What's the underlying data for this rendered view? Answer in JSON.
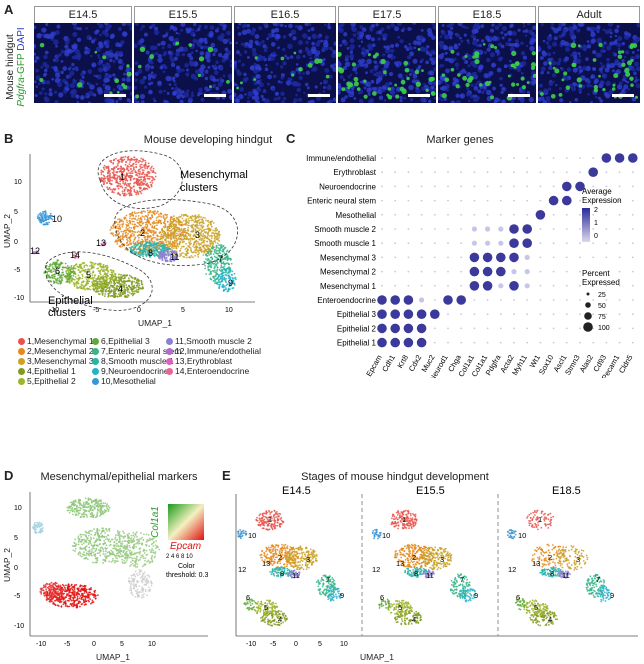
{
  "panels": {
    "A": "A",
    "B": "B",
    "C": "C",
    "D": "D",
    "E": "E"
  },
  "panelA": {
    "ylabel_top": "Mouse hindgut",
    "ylabel_mid": "Pdgfra",
    "ylabel_suffix": "-GFP",
    "ylabel_dapi": "DAPI",
    "stages": [
      "E14.5",
      "E15.5",
      "E16.5",
      "E17.5",
      "E18.5",
      "Adult"
    ]
  },
  "panelB": {
    "title": "Mouse developing hindgut",
    "mesenchymal": "Mesenchymal",
    "mesenchymal2": "clusters",
    "epithelial": "Epithelial",
    "epithelial2": "clusters",
    "xlabel": "UMAP_1",
    "ylabel": "UMAP_2",
    "xticks": [
      "-10",
      "-5",
      "0",
      "5",
      "10"
    ],
    "yticks": [
      "10",
      "5",
      "0",
      "-5",
      "-10"
    ],
    "cluster_nums": [
      "1",
      "2",
      "3",
      "4",
      "5",
      "6",
      "7",
      "8",
      "9",
      "10",
      "11",
      "12",
      "13",
      "14"
    ]
  },
  "legend": [
    {
      "label": "1,Mesenchymal 1",
      "color": "#e8554e"
    },
    {
      "label": "2,Mesenchymal 2",
      "color": "#e38a1e"
    },
    {
      "label": "3,Mesenchymal 3",
      "color": "#c9a227"
    },
    {
      "label": "4,Epithelial 1",
      "color": "#7f9a1f"
    },
    {
      "label": "5,Epithelial 2",
      "color": "#9bb52c"
    },
    {
      "label": "6,Epithelial 3",
      "color": "#5fa83a"
    },
    {
      "label": "7,Enteric neural stem",
      "color": "#3ab589"
    },
    {
      "label": "8,Smooth muscle 1",
      "color": "#2bb3a8"
    },
    {
      "label": "9,Neuroendocrine",
      "color": "#27b1c9"
    },
    {
      "label": "10,Mesothelial",
      "color": "#3a95d6"
    },
    {
      "label": "11,Smooth muscle 2",
      "color": "#8b7fd0"
    },
    {
      "label": "12,Immune/endothelial",
      "color": "#b06fc9"
    },
    {
      "label": "13,Erythroblast",
      "color": "#d865b4"
    },
    {
      "label": "14,Enteroendocrine",
      "color": "#e6679a"
    }
  ],
  "panelC": {
    "title": "Marker genes",
    "rows": [
      "Immune/endothelial",
      "Erythroblast",
      "Neuroendocrine",
      "Enteric neural stem",
      "Mesothelial",
      "Smooth muscle 2",
      "Smooth muscle 1",
      "Mesenchymal 3",
      "Mesenchymal 2",
      "Mesenchymal 1",
      "Enteroendocrine",
      "Epithelial 3",
      "Epithelial 2",
      "Epithelial 1"
    ],
    "genes": [
      "Epcam",
      "Cdh1",
      "Krt8",
      "Cdx2",
      "Muc2",
      "Neurod1",
      "Chga",
      "Col1a1",
      "Col1a1",
      "Pdgfra",
      "Acta2",
      "Myh11",
      "Wt1",
      "Sox10",
      "Ascl1",
      "Stmn3",
      "Alas2",
      "Cd93",
      "Pecam1",
      "Cldn5"
    ],
    "avg_title": "Average",
    "avg_title2": "Expression",
    "avg_ticks": [
      "2",
      "1",
      "0"
    ],
    "pct_title": "Percent",
    "pct_title2": "Expressed",
    "pct_ticks": [
      "25",
      "50",
      "75",
      "100"
    ]
  },
  "panelD": {
    "title": "Mesenchymal/epithelial markers",
    "gene1": "Col1a1",
    "gene2": "Epcam",
    "ticks": "2 4 6 8 10",
    "color_label": "Color",
    "threshold": "threshold: 0.3",
    "xlabel": "UMAP_1",
    "ylabel": "UMAP_2"
  },
  "panelE": {
    "title": "Stages of mouse hindgut development",
    "stages": [
      "E14.5",
      "E15.5",
      "E18.5"
    ],
    "xlabel": "UMAP_1"
  },
  "colors": {
    "mes1": "#e8554e",
    "mes2": "#e38a1e",
    "mes3": "#c9a227",
    "epi": "#8fb02a",
    "epi1": "#6f9a1e",
    "ens": "#3ab589",
    "sm": "#2bb3a8",
    "neuro": "#27b1c9",
    "meso": "#3a95d6",
    "sm2": "#8b7fd0",
    "eryth": "#d865b4",
    "ee": "#e6679a",
    "dotdark": "#3b3a9c",
    "dotlight": "#c8c6e6"
  }
}
